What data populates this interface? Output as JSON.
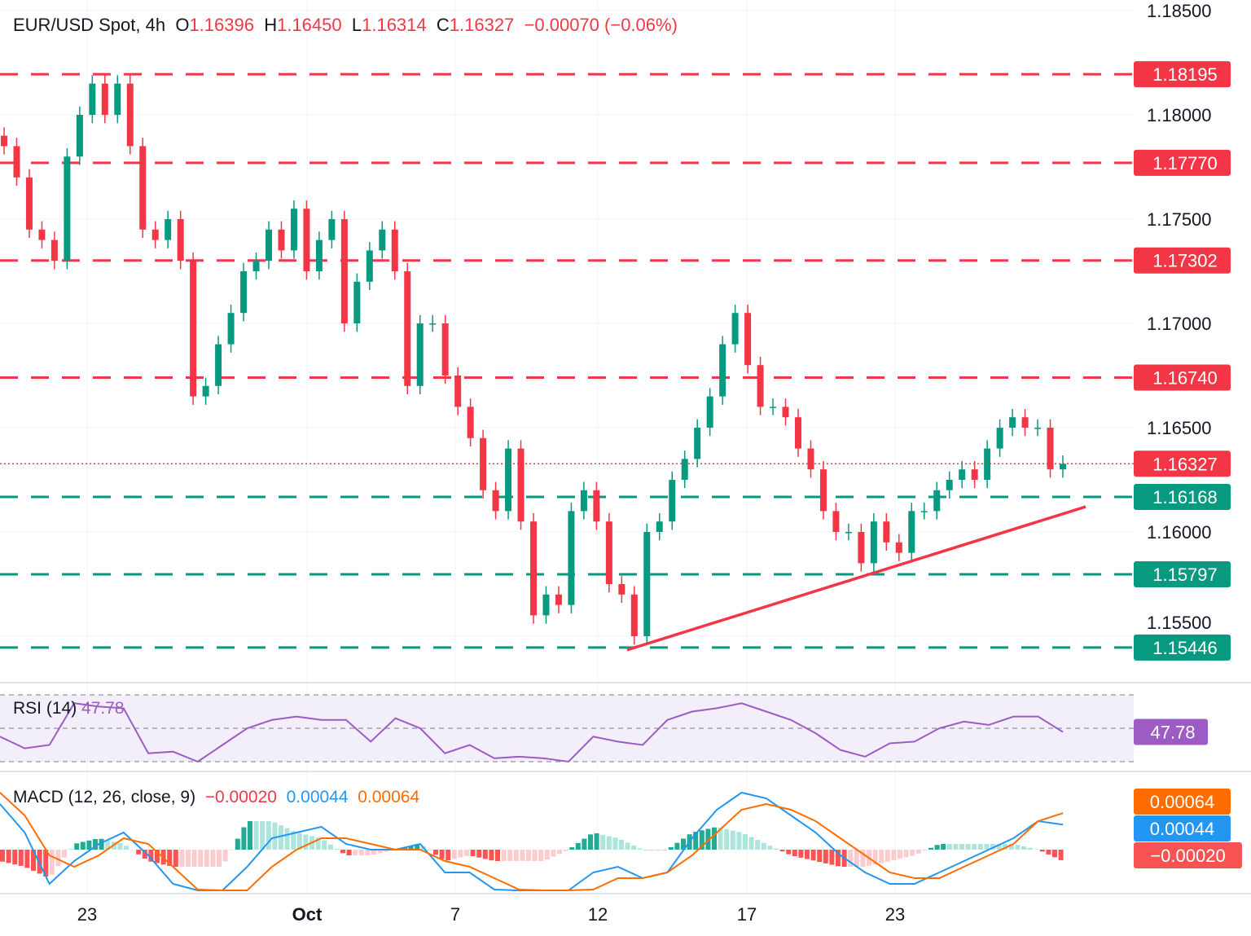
{
  "header": {
    "symbol": "EUR/USD Spot, 4h",
    "o_label": "O",
    "open": "1.16396",
    "h_label": "H",
    "high": "1.16450",
    "l_label": "L",
    "low": "1.16314",
    "c_label": "C",
    "close": "1.16327",
    "change": "−0.00070 (−0.06%)"
  },
  "rsi": {
    "label": "RSI (14)",
    "value": "47.78",
    "color": "#9c5cc4"
  },
  "macd": {
    "label": "MACD (12, 26, close, 9)",
    "hist": "−0.00020",
    "macd": "0.00044",
    "signal": "0.00064",
    "macd_color": "#2196f3",
    "signal_color": "#ff6d00"
  },
  "colors": {
    "up": "#089981",
    "down": "#f23645",
    "resistance": "#f23645",
    "support": "#089981"
  },
  "chart_data": {
    "type": "candlestick",
    "title": "EUR/USD Spot, 4h",
    "ylim": [
      1.1525,
      1.1855
    ],
    "y_ticks": [
      "1.18500",
      "1.18000",
      "1.17500",
      "1.17000",
      "1.16500",
      "1.16000",
      "1.15500"
    ],
    "x_ticks": [
      "23",
      "Oct",
      "7",
      "12",
      "17",
      "23"
    ],
    "grid": true,
    "closes": [
      1.1785,
      1.177,
      1.1745,
      1.174,
      1.173,
      1.178,
      1.18,
      1.1815,
      1.18,
      1.1815,
      1.1785,
      1.1745,
      1.174,
      1.175,
      1.173,
      1.1665,
      1.167,
      1.169,
      1.1705,
      1.1725,
      1.173,
      1.1745,
      1.1735,
      1.1755,
      1.1725,
      1.174,
      1.175,
      1.17,
      1.172,
      1.1735,
      1.1745,
      1.1725,
      1.167,
      1.17,
      1.17,
      1.1675,
      1.166,
      1.1645,
      1.162,
      1.161,
      1.164,
      1.1605,
      1.156,
      1.157,
      1.1565,
      1.161,
      1.162,
      1.1605,
      1.1575,
      1.157,
      1.155,
      1.16,
      1.1605,
      1.1625,
      1.1635,
      1.165,
      1.1665,
      1.169,
      1.1705,
      1.168,
      1.166,
      1.166,
      1.1655,
      1.164,
      1.163,
      1.161,
      1.16,
      1.16,
      1.1585,
      1.1605,
      1.1595,
      1.159,
      1.161,
      1.161,
      1.162,
      1.1625,
      1.163,
      1.1625,
      1.164,
      1.165,
      1.1655,
      1.165,
      1.165,
      1.163,
      1.16327
    ],
    "resistance_levels": [
      "1.18195",
      "1.17770",
      "1.17302",
      "1.16740"
    ],
    "support_levels": [
      "1.16168",
      "1.15797",
      "1.15446"
    ],
    "last_price": "1.16327",
    "trendline": [
      1.1545,
      1.1616
    ],
    "rsi_values": [
      45,
      38,
      40,
      65,
      63,
      62,
      35,
      36,
      30,
      40,
      50,
      55,
      57,
      55,
      55,
      42,
      56,
      50,
      35,
      40,
      32,
      33,
      32,
      30,
      45,
      42,
      40,
      55,
      60,
      62,
      65,
      60,
      55,
      47,
      37,
      33,
      41,
      42,
      50,
      54,
      52,
      57,
      57,
      47.78
    ],
    "rsi_bands": [
      70,
      50,
      30
    ],
    "macd_values": [
      8,
      3,
      -6,
      -2,
      1,
      3,
      -1,
      -6,
      -10,
      -14,
      -3,
      2,
      3,
      4,
      1,
      0,
      0,
      1,
      -4,
      -4,
      -7,
      -9,
      -11,
      -10,
      -4,
      -3,
      -5,
      -4,
      2,
      7,
      10,
      9,
      6,
      3,
      -1,
      -4,
      -6,
      -6,
      -4,
      -2,
      0,
      2,
      5,
      4.4
    ],
    "signal_values": [
      10,
      6,
      -1,
      -3,
      -1,
      2,
      1,
      -3,
      -7,
      -11,
      -8,
      -3,
      0,
      2,
      2,
      1,
      0,
      0,
      -2,
      -3,
      -5,
      -7,
      -9,
      -10,
      -7,
      -5,
      -5,
      -4,
      -1,
      3,
      7,
      8,
      7,
      5,
      2,
      -1,
      -4,
      -5,
      -5,
      -3,
      -1,
      1,
      5,
      6.4
    ],
    "macd_unit": "0.0001"
  }
}
